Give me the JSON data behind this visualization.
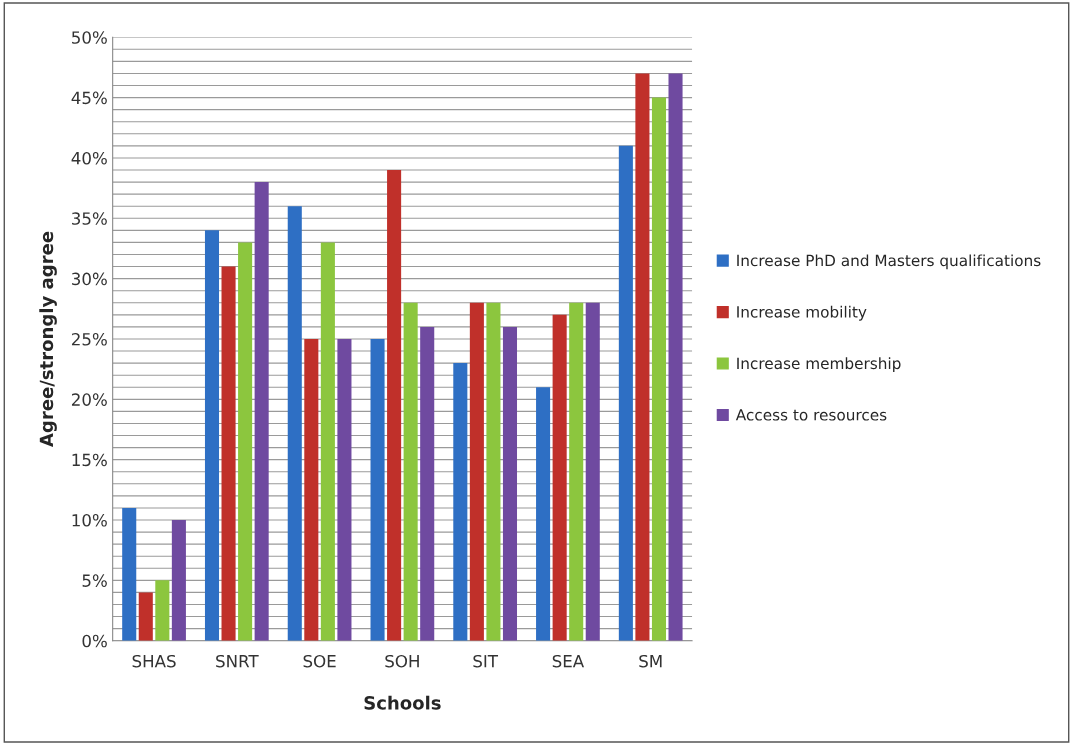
{
  "chart_data": {
    "type": "bar",
    "xlabel": "Schools",
    "ylabel": "Agree/strongly agree",
    "categories": [
      "SHAS",
      "SNRT",
      "SOE",
      "SOH",
      "SIT",
      "SEA",
      "SM"
    ],
    "series": [
      {
        "name": "Increase PhD and Masters qualifications",
        "color": "#2e6fc4",
        "values": [
          11,
          34,
          36,
          25,
          23,
          21,
          41
        ]
      },
      {
        "name": "Increase mobility",
        "color": "#c0302a",
        "values": [
          4,
          31,
          25,
          39,
          28,
          27,
          47
        ]
      },
      {
        "name": "Increase membership",
        "color": "#8cc63e",
        "values": [
          5,
          33,
          33,
          28,
          28,
          28,
          45
        ]
      },
      {
        "name": "Access to resources",
        "color": "#6f4aa0",
        "values": [
          10,
          38,
          25,
          26,
          26,
          28,
          47
        ]
      }
    ],
    "ylim": [
      0,
      50
    ],
    "yticks": [
      {
        "value": 0,
        "label": "0%"
      },
      {
        "value": 1,
        "label": null
      },
      {
        "value": 2,
        "label": null
      },
      {
        "value": 3,
        "label": null
      },
      {
        "value": 4,
        "label": null
      },
      {
        "value": 5,
        "label": "5%"
      },
      {
        "value": 6,
        "label": null
      },
      {
        "value": 7,
        "label": null
      },
      {
        "value": 8,
        "label": null
      },
      {
        "value": 9,
        "label": null
      },
      {
        "value": 10,
        "label": "10%"
      },
      {
        "value": 11,
        "label": null
      },
      {
        "value": 12,
        "label": null
      },
      {
        "value": 13,
        "label": null
      },
      {
        "value": 14,
        "label": null
      },
      {
        "value": 15,
        "label": "15%"
      },
      {
        "value": 16,
        "label": null
      },
      {
        "value": 17,
        "label": null
      },
      {
        "value": 18,
        "label": null
      },
      {
        "value": 19,
        "label": null
      },
      {
        "value": 20,
        "label": "20%"
      },
      {
        "value": 21,
        "label": null
      },
      {
        "value": 22,
        "label": null
      },
      {
        "value": 23,
        "label": null
      },
      {
        "value": 24,
        "label": null
      },
      {
        "value": 25,
        "label": "25%"
      },
      {
        "value": 26,
        "label": null
      },
      {
        "value": 27,
        "label": null
      },
      {
        "value": 28,
        "label": null
      },
      {
        "value": 29,
        "label": null
      },
      {
        "value": 30,
        "label": "30%"
      },
      {
        "value": 31,
        "label": null
      },
      {
        "value": 32,
        "label": null
      },
      {
        "value": 33,
        "label": null
      },
      {
        "value": 34,
        "label": null
      },
      {
        "value": 35,
        "label": "35%"
      },
      {
        "value": 36,
        "label": null
      },
      {
        "value": 37,
        "label": null
      },
      {
        "value": 38,
        "label": null
      },
      {
        "value": 39,
        "label": null
      },
      {
        "value": 40,
        "label": "40%"
      },
      {
        "value": 41,
        "label": null
      },
      {
        "value": 42,
        "label": null
      },
      {
        "value": 43,
        "label": null
      },
      {
        "value": 44,
        "label": null
      },
      {
        "value": 45,
        "label": "45%"
      },
      {
        "value": 46,
        "label": null
      },
      {
        "value": 47,
        "label": null
      },
      {
        "value": 48,
        "label": null
      },
      {
        "value": 49,
        "label": null
      },
      {
        "value": 50,
        "label": "50%"
      }
    ],
    "grid": "y",
    "legend": "right"
  }
}
